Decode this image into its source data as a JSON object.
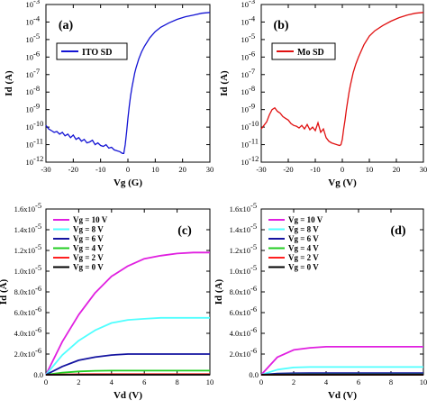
{
  "colors": {
    "ito": "#1414d4",
    "mo": "#e01010",
    "vg10": "#e020e0",
    "vg8": "#50ffff",
    "vg6": "#1414a0",
    "vg4": "#22cc22",
    "vg2": "#ff2020",
    "vg0": "#000000"
  },
  "chart_data": [
    {
      "type": "line",
      "panel": "(a)",
      "xlabel": "Vg (G)",
      "ylabel": "Id (A)",
      "xlim": [
        -30,
        30
      ],
      "ylim_log10": [
        -12,
        -3
      ],
      "log_y": true,
      "xticks": [
        "-30",
        "-20",
        "-10",
        "0",
        "10",
        "20",
        "30"
      ],
      "ytick_exponents": [
        "-3",
        "-4",
        "-5",
        "-6",
        "-7",
        "-8",
        "-9",
        "-10",
        "-11",
        "-12"
      ],
      "ytick_base": "10",
      "legend": {
        "position": "top-left",
        "box": true
      },
      "series": [
        {
          "name": "ITO SD",
          "color_key": "ito",
          "x": [
            -30,
            -29,
            -28,
            -27,
            -26,
            -25,
            -24,
            -23,
            -22,
            -21,
            -20,
            -19,
            -18,
            -17,
            -16,
            -15,
            -14,
            -13,
            -12,
            -11,
            -10,
            -9,
            -8,
            -7,
            -6,
            -5,
            -4,
            -3,
            -2.5,
            -2,
            -1.5,
            -1,
            -0.5,
            0,
            0.5,
            1,
            1.5,
            2,
            2.5,
            3,
            4,
            5,
            6,
            8,
            10,
            12,
            15,
            18,
            21,
            24,
            27,
            30
          ],
          "log10_y": [
            -9.9,
            -10.1,
            -10.2,
            -10.3,
            -10.25,
            -10.4,
            -10.3,
            -10.5,
            -10.4,
            -10.6,
            -10.45,
            -10.7,
            -10.6,
            -10.8,
            -10.7,
            -10.9,
            -10.85,
            -10.75,
            -11.0,
            -10.9,
            -11.05,
            -11.1,
            -11.0,
            -11.2,
            -11.15,
            -11.3,
            -11.35,
            -11.4,
            -11.45,
            -11.5,
            -11.5,
            -11.0,
            -10.3,
            -9.5,
            -8.8,
            -8.2,
            -7.7,
            -7.3,
            -6.9,
            -6.6,
            -6.1,
            -5.7,
            -5.4,
            -4.9,
            -4.55,
            -4.3,
            -4.05,
            -3.85,
            -3.7,
            -3.6,
            -3.5,
            -3.45
          ]
        }
      ]
    },
    {
      "type": "line",
      "panel": "(b)",
      "xlabel": "Vg (V)",
      "ylabel": "Id (A)",
      "xlim": [
        -30,
        30
      ],
      "ylim_log10": [
        -12,
        -3
      ],
      "log_y": true,
      "xticks": [
        "-30",
        "-20",
        "-10",
        "0",
        "10",
        "20",
        "30"
      ],
      "ytick_exponents": [
        "-3",
        "-4",
        "-5",
        "-6",
        "-7",
        "-8",
        "-9",
        "-10",
        "-11",
        "-12"
      ],
      "ytick_base": "10",
      "legend": {
        "position": "top-left",
        "box": true
      },
      "series": [
        {
          "name": "Mo SD",
          "color_key": "mo",
          "x": [
            -30,
            -29,
            -28,
            -27,
            -26,
            -25,
            -24,
            -23,
            -22,
            -21,
            -20,
            -19,
            -18,
            -17,
            -16,
            -15,
            -14,
            -13,
            -12,
            -11,
            -10,
            -9,
            -8,
            -7,
            -6,
            -5,
            -4,
            -3,
            -2,
            -1,
            -0.5,
            0,
            0.5,
            1,
            1.5,
            2,
            2.5,
            3,
            4,
            5,
            6,
            8,
            10,
            12,
            15,
            18,
            21,
            24,
            27,
            30
          ],
          "log10_y": [
            -10.1,
            -9.9,
            -9.7,
            -9.3,
            -9.0,
            -8.9,
            -9.1,
            -9.2,
            -9.4,
            -9.5,
            -9.6,
            -9.8,
            -9.9,
            -9.95,
            -10.05,
            -9.9,
            -10.1,
            -9.85,
            -10.15,
            -10.0,
            -10.2,
            -9.75,
            -10.3,
            -10.1,
            -10.6,
            -10.8,
            -10.9,
            -10.95,
            -11.0,
            -11.05,
            -11.0,
            -10.7,
            -10.1,
            -9.6,
            -9.0,
            -8.5,
            -8.0,
            -7.6,
            -6.9,
            -6.4,
            -6.0,
            -5.3,
            -4.8,
            -4.5,
            -4.2,
            -3.95,
            -3.75,
            -3.6,
            -3.5,
            -3.45
          ]
        }
      ]
    },
    {
      "type": "line",
      "panel": "(c)",
      "xlabel": "Vd (V)",
      "ylabel": "Id (A)",
      "xlim": [
        0,
        10
      ],
      "ylim": [
        0,
        1.6e-05
      ],
      "xticks": [
        "0",
        "2",
        "4",
        "6",
        "8",
        "10"
      ],
      "yticks": [
        "0.0",
        "2.0x10",
        "4.0x10",
        "6.0x10",
        "8.0x10",
        "1.0x10",
        "1.2x10",
        "1.4x10",
        "1.6x10"
      ],
      "ytick_sup": [
        "",
        "-6",
        "-6",
        "-6",
        "-6",
        "-5",
        "-5",
        "-5",
        "-5"
      ],
      "legend": {
        "position": "top-left",
        "box": false
      },
      "series": [
        {
          "name": "Vg = 10 V",
          "color_key": "vg10",
          "values_at_vd_0_to_10": [
            0,
            3.2e-06,
            5.8e-06,
            7.9e-06,
            9.5e-06,
            1.05e-05,
            1.12e-05,
            1.15e-05,
            1.17e-05,
            1.18e-05,
            1.18e-05
          ]
        },
        {
          "name": "Vg = 8 V",
          "color_key": "vg8",
          "values_at_vd_0_to_10": [
            0,
            1.9e-06,
            3.3e-06,
            4.3e-06,
            5e-06,
            5.3e-06,
            5.4e-06,
            5.5e-06,
            5.5e-06,
            5.5e-06,
            5.5e-06
          ]
        },
        {
          "name": "Vg = 6 V",
          "color_key": "vg6",
          "values_at_vd_0_to_10": [
            0,
            8e-07,
            1.4e-06,
            1.7e-06,
            1.9e-06,
            2e-06,
            2e-06,
            2e-06,
            2e-06,
            2e-06,
            2e-06
          ]
        },
        {
          "name": "Vg = 4 V",
          "color_key": "vg4",
          "values_at_vd_0_to_10": [
            0,
            2e-07,
            3.2e-07,
            3.8e-07,
            4e-07,
            4e-07,
            4e-07,
            4e-07,
            4e-07,
            4e-07,
            4e-07
          ]
        },
        {
          "name": "Vg = 2 V",
          "color_key": "vg2",
          "values_at_vd_0_to_10": [
            0,
            3e-08,
            5e-08,
            6e-08,
            6e-08,
            6e-08,
            6e-08,
            6e-08,
            6e-08,
            6e-08,
            6e-08
          ]
        },
        {
          "name": "Vg = 0 V",
          "color_key": "vg0",
          "values_at_vd_0_to_10": [
            0,
            0,
            0,
            0,
            0,
            0,
            0,
            0,
            0,
            0,
            0
          ]
        }
      ]
    },
    {
      "type": "line",
      "panel": "(d)",
      "xlabel": "Vd (V)",
      "ylabel": "Id (A)",
      "xlim": [
        0,
        10
      ],
      "ylim": [
        0,
        1.6e-05
      ],
      "xticks": [
        "0",
        "2",
        "4",
        "6",
        "8",
        "10"
      ],
      "yticks": [
        "0.0",
        "2.0x10",
        "4.0x10",
        "6.0x10",
        "8.0x10",
        "1.0x10",
        "1.2x10",
        "1.4x10",
        "1.6x10"
      ],
      "ytick_sup": [
        "",
        "-6",
        "-6",
        "-6",
        "-6",
        "-5",
        "-5",
        "-5",
        "-5"
      ],
      "legend": {
        "position": "top-left",
        "box": false
      },
      "series": [
        {
          "name": "Vg = 10 V",
          "color_key": "vg10",
          "values_at_vd_0_to_10": [
            0,
            1.7e-06,
            2.4e-06,
            2.6e-06,
            2.7e-06,
            2.7e-06,
            2.7e-06,
            2.7e-06,
            2.7e-06,
            2.7e-06,
            2.7e-06
          ]
        },
        {
          "name": "Vg = 8 V",
          "color_key": "vg8",
          "values_at_vd_0_to_10": [
            0,
            5e-07,
            7e-07,
            7.5e-07,
            7.5e-07,
            7.5e-07,
            7.5e-07,
            7.5e-07,
            7.5e-07,
            7.5e-07,
            7.5e-07
          ]
        },
        {
          "name": "Vg = 6 V",
          "color_key": "vg6",
          "values_at_vd_0_to_10": [
            0,
            1.2e-07,
            1.5e-07,
            1.6e-07,
            1.6e-07,
            1.6e-07,
            1.6e-07,
            1.6e-07,
            1.6e-07,
            1.6e-07,
            1.6e-07
          ]
        },
        {
          "name": "Vg = 4 V",
          "color_key": "vg4",
          "values_at_vd_0_to_10": [
            0,
            2e-08,
            3e-08,
            3e-08,
            3e-08,
            3e-08,
            3e-08,
            3e-08,
            3e-08,
            3e-08,
            3e-08
          ]
        },
        {
          "name": "Vg = 2 V",
          "color_key": "vg2",
          "values_at_vd_0_to_10": [
            0,
            0,
            0,
            0,
            0,
            0,
            0,
            0,
            0,
            0,
            0
          ]
        },
        {
          "name": "Vg = 0 V",
          "color_key": "vg0",
          "values_at_vd_0_to_10": [
            0,
            0,
            0,
            0,
            0,
            0,
            0,
            0,
            0,
            0,
            0
          ]
        }
      ]
    }
  ]
}
